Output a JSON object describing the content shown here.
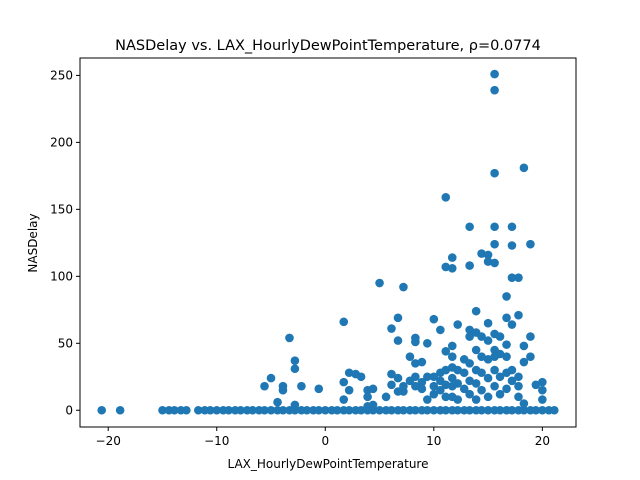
{
  "chart_data": {
    "type": "scatter",
    "title": "NASDelay vs. LAX_HourlyDewPointTemperature, ρ=0.0774",
    "xlabel": "LAX_HourlyDewPointTemperature",
    "ylabel": "NASDelay",
    "xlim": [
      -22.6,
      23.1
    ],
    "ylim": [
      -12.5,
      263
    ],
    "xticks": [
      -20,
      -10,
      0,
      10,
      20
    ],
    "yticks": [
      0,
      50,
      100,
      150,
      200,
      250
    ],
    "xtick_labels": [
      "−20",
      "−10",
      "0",
      "10",
      "20"
    ],
    "ytick_labels": [
      "0",
      "50",
      "100",
      "150",
      "200",
      "250"
    ],
    "grid": false,
    "color": "#1f77b4",
    "points": [
      [
        -20.6,
        0
      ],
      [
        -18.9,
        0
      ],
      [
        -15,
        0
      ],
      [
        -14.4,
        0
      ],
      [
        -13.9,
        0
      ],
      [
        -13.3,
        0
      ],
      [
        -12.8,
        0
      ],
      [
        -11.7,
        0
      ],
      [
        -11.1,
        0
      ],
      [
        -10.6,
        0
      ],
      [
        -10,
        0
      ],
      [
        -9.4,
        0
      ],
      [
        -8.9,
        0
      ],
      [
        -8.3,
        0
      ],
      [
        -7.8,
        0
      ],
      [
        -7.2,
        0
      ],
      [
        -6.7,
        0
      ],
      [
        -6.1,
        0
      ],
      [
        -5.6,
        0
      ],
      [
        -5,
        0
      ],
      [
        -4.4,
        0
      ],
      [
        -3.9,
        0
      ],
      [
        -3.3,
        0
      ],
      [
        -2.8,
        0
      ],
      [
        -2.2,
        0
      ],
      [
        -1.7,
        0
      ],
      [
        -1.1,
        0
      ],
      [
        -0.6,
        0
      ],
      [
        0,
        0
      ],
      [
        0.6,
        0
      ],
      [
        1.1,
        0
      ],
      [
        1.7,
        0
      ],
      [
        2.2,
        0
      ],
      [
        2.8,
        0
      ],
      [
        3.3,
        0
      ],
      [
        3.9,
        0
      ],
      [
        4.4,
        0
      ],
      [
        5,
        0
      ],
      [
        5.6,
        0
      ],
      [
        6.1,
        0
      ],
      [
        6.7,
        0
      ],
      [
        7.2,
        0
      ],
      [
        7.8,
        0
      ],
      [
        8.3,
        0
      ],
      [
        8.9,
        0
      ],
      [
        9.4,
        0
      ],
      [
        10,
        0
      ],
      [
        10.6,
        0
      ],
      [
        11.1,
        0
      ],
      [
        11.7,
        0
      ],
      [
        12.2,
        0
      ],
      [
        12.8,
        0
      ],
      [
        13.3,
        0
      ],
      [
        13.9,
        0
      ],
      [
        14.4,
        0
      ],
      [
        15,
        0
      ],
      [
        15.6,
        0
      ],
      [
        16.1,
        0
      ],
      [
        16.7,
        0
      ],
      [
        17.2,
        0
      ],
      [
        17.8,
        0
      ],
      [
        18.3,
        0
      ],
      [
        18.9,
        0
      ],
      [
        19.4,
        0
      ],
      [
        20,
        0
      ],
      [
        20.6,
        0
      ],
      [
        21.1,
        0
      ],
      [
        -5.6,
        18
      ],
      [
        -5,
        24
      ],
      [
        -4.4,
        6
      ],
      [
        -3.9,
        18
      ],
      [
        -3.9,
        15
      ],
      [
        -3.3,
        54
      ],
      [
        -2.8,
        37
      ],
      [
        -2.8,
        31
      ],
      [
        -2.8,
        4
      ],
      [
        -2.2,
        18
      ],
      [
        -0.6,
        16
      ],
      [
        1.7,
        66
      ],
      [
        1.7,
        21
      ],
      [
        1.7,
        8
      ],
      [
        2.2,
        28
      ],
      [
        2.2,
        15
      ],
      [
        2.8,
        27
      ],
      [
        3.3,
        25
      ],
      [
        3.9,
        15
      ],
      [
        3.9,
        10
      ],
      [
        3.9,
        3
      ],
      [
        4.4,
        16
      ],
      [
        4.4,
        4
      ],
      [
        5,
        95
      ],
      [
        5.6,
        10
      ],
      [
        6.1,
        61
      ],
      [
        6.1,
        27
      ],
      [
        6.1,
        19
      ],
      [
        6.7,
        69
      ],
      [
        6.7,
        52
      ],
      [
        6.7,
        24
      ],
      [
        6.7,
        14
      ],
      [
        7.2,
        92
      ],
      [
        7.2,
        18
      ],
      [
        7.2,
        14
      ],
      [
        7.8,
        40
      ],
      [
        7.8,
        22
      ],
      [
        8.3,
        54
      ],
      [
        8.3,
        51
      ],
      [
        8.3,
        35
      ],
      [
        8.3,
        25
      ],
      [
        8.3,
        18
      ],
      [
        8.9,
        36
      ],
      [
        8.9,
        21
      ],
      [
        8.9,
        16
      ],
      [
        9.4,
        50
      ],
      [
        9.4,
        25
      ],
      [
        9.4,
        8
      ],
      [
        10,
        68
      ],
      [
        10,
        25
      ],
      [
        10,
        18
      ],
      [
        10,
        12
      ],
      [
        10.6,
        60
      ],
      [
        10.6,
        22
      ],
      [
        10.6,
        28
      ],
      [
        10.6,
        15
      ],
      [
        11.1,
        159
      ],
      [
        11.1,
        107
      ],
      [
        11.1,
        44
      ],
      [
        11.1,
        30
      ],
      [
        11.1,
        19
      ],
      [
        11.1,
        10
      ],
      [
        11.7,
        114
      ],
      [
        11.7,
        106
      ],
      [
        11.7,
        48
      ],
      [
        11.7,
        40
      ],
      [
        11.7,
        32
      ],
      [
        11.7,
        24
      ],
      [
        11.7,
        18
      ],
      [
        11.7,
        10
      ],
      [
        12.2,
        64
      ],
      [
        12.2,
        30
      ],
      [
        12.2,
        20
      ],
      [
        12.2,
        8
      ],
      [
        12.8,
        38
      ],
      [
        12.8,
        28
      ],
      [
        12.8,
        16
      ],
      [
        13.3,
        137
      ],
      [
        13.3,
        108
      ],
      [
        13.3,
        60
      ],
      [
        13.3,
        55
      ],
      [
        13.3,
        35
      ],
      [
        13.3,
        22
      ],
      [
        13.3,
        12
      ],
      [
        13.9,
        74
      ],
      [
        13.9,
        58
      ],
      [
        13.9,
        45
      ],
      [
        13.9,
        30
      ],
      [
        13.9,
        20
      ],
      [
        13.9,
        8
      ],
      [
        14.4,
        117
      ],
      [
        14.4,
        55
      ],
      [
        14.4,
        40
      ],
      [
        14.4,
        28
      ],
      [
        14.4,
        15
      ],
      [
        15,
        116
      ],
      [
        15,
        111
      ],
      [
        15,
        65
      ],
      [
        15,
        52
      ],
      [
        15,
        38
      ],
      [
        15,
        24
      ],
      [
        15,
        10
      ],
      [
        15.6,
        251
      ],
      [
        15.6,
        239
      ],
      [
        15.6,
        177
      ],
      [
        15.6,
        137
      ],
      [
        15.6,
        124
      ],
      [
        15.6,
        110
      ],
      [
        15.6,
        57
      ],
      [
        15.6,
        45
      ],
      [
        15.6,
        40
      ],
      [
        15.6,
        30
      ],
      [
        15.6,
        18
      ],
      [
        16.1,
        55
      ],
      [
        16.1,
        42
      ],
      [
        16.1,
        25
      ],
      [
        16.1,
        12
      ],
      [
        16.7,
        85
      ],
      [
        16.7,
        69
      ],
      [
        16.7,
        49
      ],
      [
        16.7,
        40
      ],
      [
        16.7,
        28
      ],
      [
        16.7,
        16
      ],
      [
        17.2,
        137
      ],
      [
        17.2,
        123
      ],
      [
        17.2,
        99
      ],
      [
        17.2,
        64
      ],
      [
        17.2,
        30
      ],
      [
        17.2,
        22
      ],
      [
        17.8,
        99
      ],
      [
        17.8,
        71
      ],
      [
        17.8,
        25
      ],
      [
        17.8,
        18
      ],
      [
        17.8,
        10
      ],
      [
        18.3,
        181
      ],
      [
        18.3,
        48
      ],
      [
        18.3,
        36
      ],
      [
        18.3,
        5
      ],
      [
        18.9,
        124
      ],
      [
        18.9,
        55
      ],
      [
        18.9,
        40
      ],
      [
        19.4,
        19
      ],
      [
        20,
        21
      ],
      [
        20,
        15
      ],
      [
        20,
        8
      ]
    ]
  }
}
